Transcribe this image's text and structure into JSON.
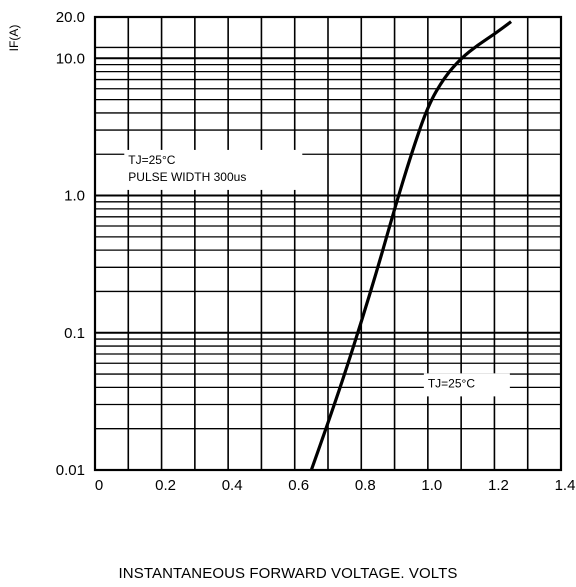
{
  "chart_data": {
    "type": "line",
    "title": "",
    "xlabel": "INSTANTANEOUS FORWARD VOLTAGE. VOLTS",
    "ylabel": "IF(A)",
    "xlim": [
      0,
      1.4
    ],
    "ylim": [
      0.01,
      20.0
    ],
    "y_scale": "log",
    "grid": true,
    "x_ticks": [
      {
        "value": 0,
        "label": "0"
      },
      {
        "value": 0.2,
        "label": "0.2"
      },
      {
        "value": 0.4,
        "label": "0.4"
      },
      {
        "value": 0.6,
        "label": "0.6"
      },
      {
        "value": 0.8,
        "label": "0.8"
      },
      {
        "value": 1.0,
        "label": "1.0"
      },
      {
        "value": 1.2,
        "label": "1.2"
      },
      {
        "value": 1.4,
        "label": "1.4"
      }
    ],
    "y_ticks": [
      {
        "value": 0.01,
        "label": "0.01"
      },
      {
        "value": 0.1,
        "label": "0.1"
      },
      {
        "value": 1.0,
        "label": "1.0"
      },
      {
        "value": 10.0,
        "label": "10.0"
      },
      {
        "value": 20.0,
        "label": "20.0"
      }
    ],
    "series": [
      {
        "name": "",
        "x": [
          0.65,
          0.7,
          0.75,
          0.8,
          0.85,
          0.9,
          0.95,
          1.0,
          1.05,
          1.1,
          1.15,
          1.2,
          1.25
        ],
        "y": [
          0.01,
          0.022,
          0.05,
          0.12,
          0.3,
          0.8,
          2.0,
          4.5,
          7.3,
          10.0,
          12.5,
          15.0,
          18.5
        ]
      }
    ],
    "annotations": [
      {
        "lines": [
          "TJ=25°C",
          "PULSE WIDTH 300us"
        ],
        "x": 0.1,
        "y": 1.7
      },
      {
        "lines": [
          "TJ=25°C"
        ],
        "x": 1.0,
        "y": 0.04
      }
    ]
  }
}
